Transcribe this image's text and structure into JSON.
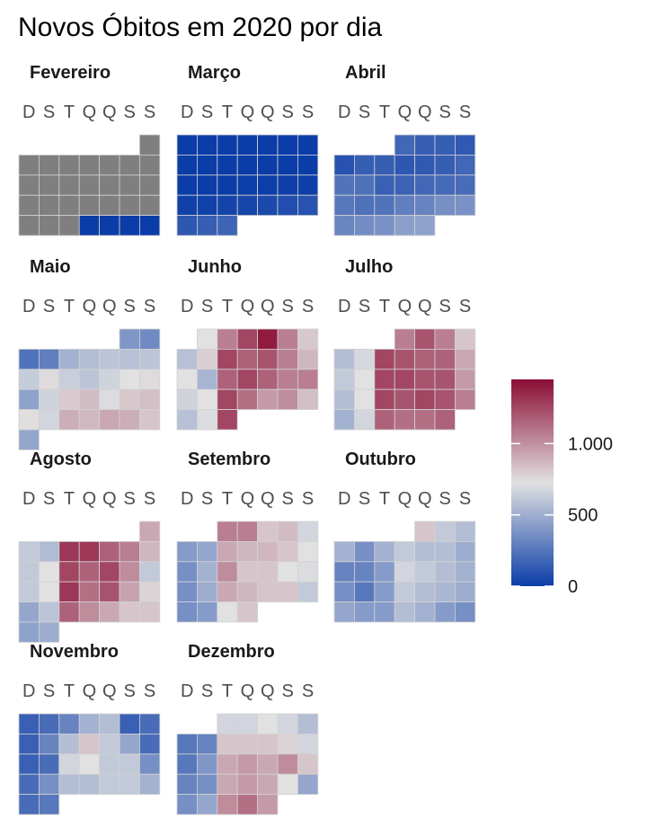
{
  "chart_data": {
    "type": "heatmap",
    "title": "Novos Óbitos em 2020 por dia",
    "weekday_labels": [
      "D",
      "S",
      "T",
      "Q",
      "Q",
      "S",
      "S"
    ],
    "scale": {
      "min": 0,
      "max": 1450,
      "midpoint": 700,
      "colors": {
        "low": "#0b3da8",
        "mid": "#e1e1e1",
        "high": "#8b0d35"
      },
      "missing_color": "#7f7f7f",
      "ticks": [
        0,
        500,
        1000
      ],
      "tick_labels": [
        "0",
        "500",
        "1.000"
      ]
    },
    "months": [
      {
        "name": "Fevereiro",
        "first_weekday": 6,
        "days": 29,
        "values": [
          null,
          null,
          null,
          null,
          null,
          null,
          null,
          null,
          null,
          null,
          null,
          null,
          null,
          null,
          null,
          null,
          null,
          null,
          null,
          null,
          null,
          null,
          null,
          null,
          null,
          0,
          0,
          0,
          0
        ]
      },
      {
        "name": "Março",
        "first_weekday": 0,
        "days": 31,
        "values": [
          0,
          0,
          0,
          0,
          0,
          0,
          0,
          0,
          0,
          0,
          0,
          0,
          0,
          0,
          0,
          0,
          1,
          2,
          3,
          5,
          10,
          15,
          20,
          30,
          40,
          55,
          70,
          90,
          110,
          140,
          165
        ]
      },
      {
        "name": "Abril",
        "first_weekday": 3,
        "days": 30,
        "values": [
          180,
          140,
          140,
          120,
          90,
          140,
          140,
          110,
          120,
          140,
          180,
          230,
          220,
          150,
          160,
          180,
          190,
          200,
          250,
          220,
          230,
          280,
          300,
          350,
          360,
          310,
          340,
          360,
          420,
          430
        ]
      },
      {
        "name": "Maio",
        "first_weekday": 5,
        "days": 31,
        "values": [
          380,
          330,
          230,
          280,
          500,
          550,
          580,
          560,
          580,
          610,
          720,
          620,
          580,
          640,
          700,
          720,
          430,
          640,
          780,
          830,
          680,
          790,
          820,
          710,
          650,
          880,
          840,
          900,
          880,
          800,
          450
        ]
      },
      {
        "name": "Junho",
        "first_weekday": 1,
        "days": 30,
        "values": [
          700,
          1050,
          1250,
          1400,
          1050,
          790,
          560,
          760,
          1250,
          1150,
          1200,
          1050,
          850,
          700,
          510,
          1150,
          1250,
          1150,
          1050,
          1050,
          640,
          700,
          1250,
          1100,
          950,
          1000,
          820,
          560,
          680,
          1250
        ]
      },
      {
        "name": "Julho",
        "first_weekday": 3,
        "days": 31,
        "values": [
          1050,
          1200,
          1050,
          800,
          550,
          660,
          1250,
          1200,
          1150,
          1150,
          900,
          600,
          700,
          1250,
          1250,
          1200,
          1200,
          950,
          550,
          700,
          1250,
          1200,
          1250,
          1200,
          1050,
          500,
          650,
          1150,
          1100,
          1100,
          1150
        ]
      },
      {
        "name": "Agosto",
        "first_weekday": 6,
        "days": 31,
        "values": [
          900,
          600,
          540,
          1300,
          1300,
          1150,
          1050,
          850,
          600,
          700,
          1250,
          1150,
          1250,
          1000,
          600,
          600,
          700,
          1300,
          1100,
          1200,
          920,
          750,
          450,
          580,
          1150,
          1000,
          900,
          800,
          800,
          430,
          480
        ]
      },
      {
        "name": "Setembro",
        "first_weekday": 2,
        "days": 30,
        "values": [
          1050,
          1050,
          800,
          830,
          650,
          400,
          450,
          900,
          850,
          850,
          800,
          700,
          350,
          500,
          1000,
          800,
          800,
          700,
          680,
          350,
          480,
          900,
          850,
          800,
          800,
          600,
          350,
          400,
          700,
          800
        ]
      },
      {
        "name": "Outubro",
        "first_weekday": 4,
        "days": 31,
        "values": [
          800,
          600,
          550,
          500,
          350,
          500,
          600,
          550,
          550,
          480,
          300,
          300,
          400,
          650,
          600,
          550,
          500,
          350,
          250,
          400,
          600,
          550,
          520,
          480,
          450,
          400,
          400,
          550,
          500,
          400,
          350
        ]
      },
      {
        "name": "Novembro",
        "first_weekday": 0,
        "days": 30,
        "values": [
          150,
          200,
          300,
          500,
          550,
          150,
          200,
          150,
          300,
          550,
          800,
          600,
          450,
          200,
          150,
          200,
          650,
          700,
          600,
          600,
          350,
          200,
          350,
          550,
          550,
          600,
          600,
          500,
          200,
          250
        ]
      },
      {
        "name": "Dezembro",
        "first_weekday": 2,
        "days": 31,
        "values": [
          650,
          650,
          700,
          650,
          550,
          250,
          300,
          800,
          800,
          800,
          750,
          650,
          250,
          380,
          900,
          950,
          900,
          1000,
          800,
          300,
          350,
          900,
          950,
          900,
          700,
          450,
          350,
          450,
          1000,
          1100,
          950
        ]
      }
    ]
  }
}
